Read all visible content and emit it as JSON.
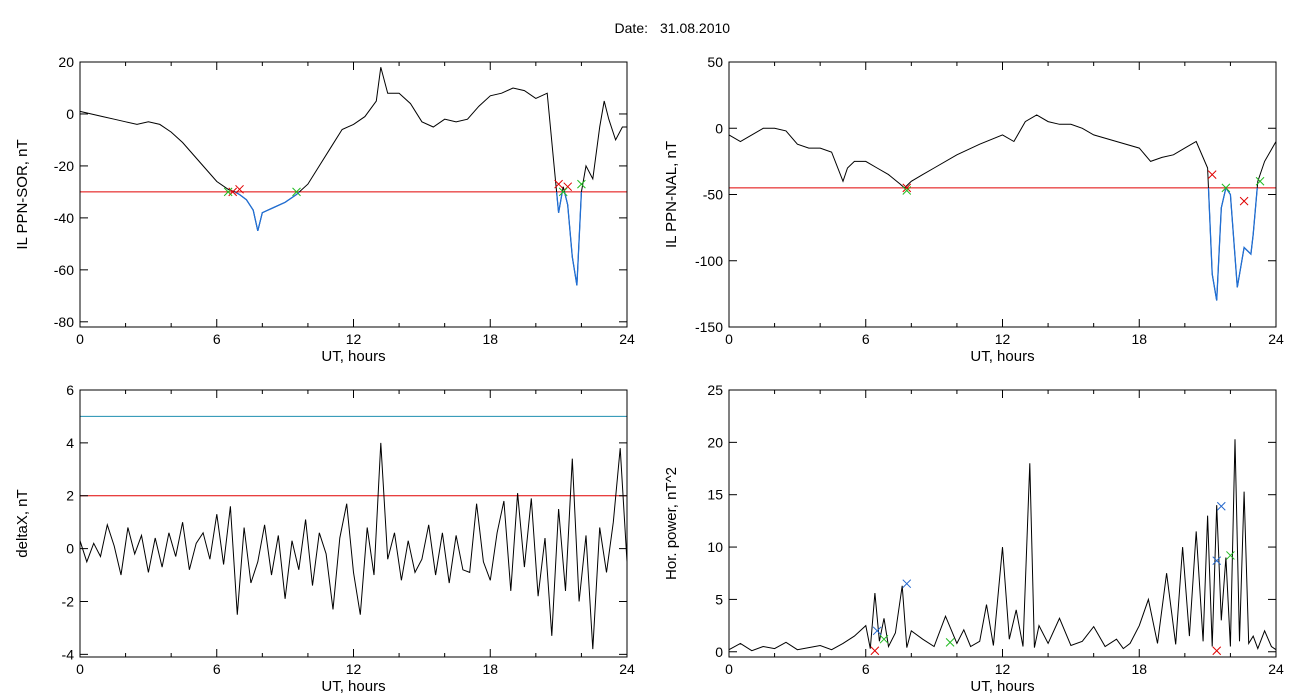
{
  "header": {
    "date_label": "Date:",
    "date_value": "31.08.2010"
  },
  "colors": {
    "trace": "#000000",
    "dip": "#1f6fd6",
    "threshold_red": "#e00000",
    "threshold_blue": "#1f8fb0",
    "marker_red": "#e00000",
    "marker_green": "#22bb22",
    "marker_blue": "#2266cc"
  },
  "chart_data": [
    {
      "id": "sor",
      "type": "line",
      "xlabel": "UT, hours",
      "ylabel": "IL PPN-SOR, nT",
      "xlim": [
        0,
        24
      ],
      "ylim": [
        -82,
        20
      ],
      "xticks": [
        "0",
        "6",
        "12",
        "18",
        "24"
      ],
      "yticks": [
        "20",
        "0",
        "-20",
        "-40",
        "-60",
        "-80"
      ],
      "thresholds": [
        {
          "y": -30,
          "color": "red"
        }
      ],
      "series": [
        {
          "x": [
            0,
            0.5,
            1,
            1.5,
            2,
            2.5,
            3,
            3.5,
            4,
            4.5,
            5,
            5.5,
            6,
            6.5,
            6.8,
            7,
            7.3,
            7.6,
            7.8,
            8,
            8.5,
            9,
            9.5,
            10,
            10.5,
            11,
            11.5,
            12,
            12.5,
            13,
            13.2,
            13.5,
            14,
            14.5,
            15,
            15.5,
            16,
            16.5,
            17,
            17.5,
            18,
            18.5,
            19,
            19.5,
            20,
            20.5,
            20.8,
            21,
            21.2,
            21.4,
            21.6,
            21.8,
            22,
            22.2,
            22.5,
            22.8,
            23,
            23.2,
            23.5,
            23.8,
            24
          ],
          "y": [
            1,
            0,
            -1,
            -2,
            -3,
            -4,
            -3,
            -4,
            -7,
            -11,
            -16,
            -21,
            -26,
            -29,
            -30,
            -31,
            -33,
            -37,
            -45,
            -38,
            -36,
            -34,
            -31,
            -27,
            -20,
            -13,
            -6,
            -4,
            -1,
            5,
            18,
            8,
            8,
            4,
            -3,
            -5,
            -2,
            -3,
            -2,
            3,
            7,
            8,
            10,
            9,
            6,
            8,
            -20,
            -38,
            -28,
            -35,
            -55,
            -66,
            -30,
            -20,
            -25,
            -5,
            5,
            -2,
            -10,
            -5,
            -5
          ]
        }
      ],
      "markers": [
        {
          "x": 6.7,
          "y": -30,
          "color": "red"
        },
        {
          "x": 7.0,
          "y": -29,
          "color": "red"
        },
        {
          "x": 6.5,
          "y": -30,
          "color": "green"
        },
        {
          "x": 9.5,
          "y": -30,
          "color": "green"
        },
        {
          "x": 21.0,
          "y": -27,
          "color": "red"
        },
        {
          "x": 21.4,
          "y": -28,
          "color": "red"
        },
        {
          "x": 21.2,
          "y": -30,
          "color": "green"
        },
        {
          "x": 22.0,
          "y": -27,
          "color": "green"
        }
      ]
    },
    {
      "id": "nal",
      "type": "line",
      "xlabel": "UT, hours",
      "ylabel": "IL PPN-NAL, nT",
      "xlim": [
        0,
        24
      ],
      "ylim": [
        -150,
        50
      ],
      "xticks": [
        "0",
        "6",
        "12",
        "18",
        "24"
      ],
      "yticks": [
        "50",
        "0",
        "-50",
        "-100",
        "-150"
      ],
      "thresholds": [
        {
          "y": -45,
          "color": "red"
        }
      ],
      "series": [
        {
          "x": [
            0,
            0.5,
            1,
            1.5,
            2,
            2.5,
            3,
            3.5,
            4,
            4.5,
            5,
            5.2,
            5.5,
            6,
            6.5,
            7,
            7.5,
            7.7,
            8,
            8.5,
            9,
            10,
            11,
            12,
            12.5,
            13,
            13.5,
            14,
            14.5,
            15,
            15.5,
            16,
            17,
            18,
            18.5,
            19,
            19.5,
            20,
            20.5,
            21,
            21.2,
            21.4,
            21.6,
            21.8,
            22,
            22.3,
            22.6,
            22.9,
            23,
            23.2,
            23.5,
            24
          ],
          "y": [
            -5,
            -10,
            -5,
            0,
            0,
            -2,
            -12,
            -15,
            -15,
            -18,
            -40,
            -30,
            -25,
            -25,
            -30,
            -35,
            -42,
            -45,
            -40,
            -35,
            -30,
            -20,
            -12,
            -5,
            -10,
            5,
            10,
            5,
            3,
            3,
            0,
            -5,
            -10,
            -15,
            -25,
            -22,
            -20,
            -15,
            -10,
            -30,
            -110,
            -130,
            -60,
            -45,
            -50,
            -120,
            -90,
            -95,
            -80,
            -40,
            -25,
            -10
          ]
        }
      ],
      "markers": [
        {
          "x": 7.8,
          "y": -45,
          "color": "red"
        },
        {
          "x": 21.2,
          "y": -35,
          "color": "red"
        },
        {
          "x": 22.6,
          "y": -55,
          "color": "red"
        },
        {
          "x": 7.8,
          "y": -47,
          "color": "green"
        },
        {
          "x": 21.8,
          "y": -45,
          "color": "green"
        },
        {
          "x": 23.3,
          "y": -40,
          "color": "green"
        }
      ]
    },
    {
      "id": "deltax",
      "type": "line",
      "xlabel": "UT, hours",
      "ylabel": "deltaX, nT",
      "xlim": [
        0,
        24
      ],
      "ylim": [
        -4.1,
        6
      ],
      "xticks": [
        "0",
        "6",
        "12",
        "18",
        "24"
      ],
      "yticks": [
        "6",
        "4",
        "2",
        "0",
        "-2",
        "-4"
      ],
      "thresholds": [
        {
          "y": 5,
          "color": "blue"
        },
        {
          "y": 2,
          "color": "red"
        }
      ],
      "series": [
        {
          "x": [
            0,
            0.3,
            0.6,
            0.9,
            1.2,
            1.5,
            1.8,
            2.1,
            2.4,
            2.7,
            3,
            3.3,
            3.6,
            3.9,
            4.2,
            4.5,
            4.8,
            5.1,
            5.4,
            5.7,
            6,
            6.3,
            6.6,
            6.9,
            7.2,
            7.5,
            7.8,
            8.1,
            8.4,
            8.7,
            9,
            9.3,
            9.6,
            9.9,
            10.2,
            10.5,
            10.8,
            11.1,
            11.4,
            11.7,
            12,
            12.3,
            12.6,
            12.9,
            13.2,
            13.5,
            13.8,
            14.1,
            14.4,
            14.7,
            15,
            15.3,
            15.6,
            15.9,
            16.2,
            16.5,
            16.8,
            17.1,
            17.4,
            17.7,
            18,
            18.3,
            18.6,
            18.9,
            19.2,
            19.5,
            19.8,
            20.1,
            20.4,
            20.7,
            21,
            21.3,
            21.6,
            21.9,
            22.2,
            22.5,
            22.8,
            23.1,
            23.4,
            23.7,
            24
          ],
          "y": [
            0.3,
            -0.5,
            0.2,
            -0.3,
            0.9,
            0.1,
            -1.0,
            0.8,
            -0.2,
            0.5,
            -0.9,
            0.4,
            -0.7,
            0.6,
            -0.3,
            1.0,
            -0.8,
            0.2,
            0.6,
            -0.4,
            1.3,
            -0.6,
            1.6,
            -2.5,
            0.8,
            -1.3,
            -0.5,
            0.9,
            -1.0,
            0.5,
            -1.9,
            0.3,
            -0.8,
            1.1,
            -1.4,
            0.6,
            -0.2,
            -2.3,
            0.4,
            1.7,
            -0.9,
            -2.5,
            0.8,
            -1.0,
            4.0,
            -0.4,
            0.6,
            -1.2,
            0.3,
            -0.9,
            -0.4,
            0.9,
            -1.0,
            0.6,
            -1.3,
            0.5,
            -0.8,
            -0.9,
            1.7,
            -0.5,
            -1.2,
            0.6,
            1.8,
            -1.6,
            2.1,
            -0.7,
            1.9,
            -1.8,
            0.4,
            -3.3,
            1.5,
            -1.6,
            3.4,
            -2.0,
            0.5,
            -3.8,
            0.8,
            -0.9,
            1.0,
            3.8,
            -0.5
          ]
        }
      ],
      "markers": []
    },
    {
      "id": "power",
      "type": "line",
      "xlabel": "UT, hours",
      "ylabel": "Hor. power, nT^2",
      "xlim": [
        0,
        24
      ],
      "ylim": [
        -0.5,
        25
      ],
      "xticks": [
        "0",
        "6",
        "12",
        "18",
        "24"
      ],
      "yticks": [
        "25",
        "20",
        "15",
        "10",
        "5",
        "0"
      ],
      "thresholds": [
        {
          "y": 25,
          "color": "red"
        }
      ],
      "series": [
        {
          "x": [
            0,
            0.5,
            1,
            1.5,
            2,
            2.5,
            3,
            3.5,
            4,
            4.5,
            5,
            5.5,
            6,
            6.2,
            6.4,
            6.6,
            6.8,
            7,
            7.3,
            7.6,
            7.8,
            8,
            8.5,
            9,
            9.5,
            10,
            10.3,
            10.6,
            11,
            11.3,
            11.6,
            12,
            12.3,
            12.6,
            12.9,
            13.2,
            13.4,
            13.6,
            14,
            14.5,
            15,
            15.5,
            16,
            16.5,
            17,
            17.3,
            17.6,
            18,
            18.4,
            18.8,
            19.2,
            19.6,
            19.9,
            20.2,
            20.5,
            20.8,
            21,
            21.2,
            21.4,
            21.6,
            21.8,
            22,
            22.2,
            22.4,
            22.6,
            22.8,
            23,
            23.2,
            23.5,
            23.8,
            24
          ],
          "y": [
            0.2,
            0.8,
            0.1,
            0.5,
            0.3,
            0.9,
            0.2,
            0.4,
            0.6,
            0.2,
            0.8,
            1.5,
            2.5,
            0.3,
            5.6,
            1.0,
            3.2,
            0.5,
            1.8,
            6.3,
            0.4,
            2.0,
            1.2,
            0.5,
            3.4,
            0.8,
            2.1,
            0.5,
            1.0,
            4.5,
            0.6,
            10.0,
            1.2,
            4.0,
            0.5,
            18.0,
            0.4,
            2.5,
            0.8,
            3.2,
            0.6,
            1.0,
            2.4,
            0.5,
            1.2,
            0.3,
            0.8,
            2.5,
            5.0,
            0.8,
            7.5,
            0.7,
            10.0,
            1.5,
            11.5,
            1.0,
            13.0,
            0.5,
            14.0,
            3.0,
            9.0,
            0.5,
            20.3,
            1.0,
            15.3,
            0.8,
            1.5,
            0.3,
            2.0,
            0.5,
            0.2
          ]
        }
      ],
      "markers": [
        {
          "x": 7.8,
          "y": 6.5,
          "color": "blue"
        },
        {
          "x": 6.5,
          "y": 2.0,
          "color": "blue"
        },
        {
          "x": 21.4,
          "y": 8.7,
          "color": "blue"
        },
        {
          "x": 21.6,
          "y": 13.9,
          "color": "blue"
        },
        {
          "x": 6.8,
          "y": 1.2,
          "color": "green"
        },
        {
          "x": 9.7,
          "y": 0.9,
          "color": "green"
        },
        {
          "x": 22.0,
          "y": 9.2,
          "color": "green"
        },
        {
          "x": 6.4,
          "y": 0.1,
          "color": "red"
        },
        {
          "x": 21.4,
          "y": 0.1,
          "color": "red"
        }
      ]
    }
  ]
}
